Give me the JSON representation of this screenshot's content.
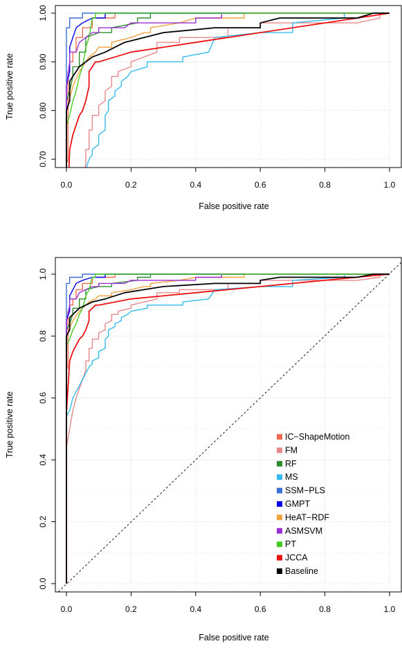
{
  "colors": {
    "IC-ShapeMotion": "#f26c4f",
    "FM": "#e8888a",
    "RF": "#2e8b2e",
    "MS": "#33bbee",
    "SSM-PLS": "#3a6fd8",
    "GMPT": "#0000ee",
    "HeAT-RDF": "#f2a23c",
    "ASMSVM": "#9a2fd4",
    "PT": "#44cc22",
    "JCCA": "#ee1111",
    "Baseline": "#000000"
  },
  "chart_data": [
    {
      "type": "line",
      "title": "",
      "xlabel": "False positive rate",
      "ylabel": "True positive rate",
      "xlim": [
        0,
        1
      ],
      "ylim": [
        0.69,
        1.0
      ],
      "xticks": [
        "0.0",
        "0.2",
        "0.4",
        "0.6",
        "0.8",
        "1.0"
      ],
      "yticks": [
        "0.70",
        "0.80",
        "0.90",
        "1.00"
      ],
      "grid": true,
      "legend": "none",
      "series_ref": "shared"
    },
    {
      "type": "line",
      "title": "",
      "xlabel": "False positive rate",
      "ylabel": "True positive rate",
      "xlim": [
        0,
        1
      ],
      "ylim": [
        0,
        1
      ],
      "xticks": [
        "0.0",
        "0.2",
        "0.4",
        "0.6",
        "0.8",
        "1.0"
      ],
      "yticks": [
        "0.0",
        "0.2",
        "0.4",
        "0.6",
        "0.8",
        "1.0"
      ],
      "grid": true,
      "diagonal": true,
      "legend": "bottom-right",
      "legend_entries": [
        "IC−ShapeMotion",
        "FM",
        "RF",
        "MS",
        "SSM−PLS",
        "GMPT",
        "HeAT−RDF",
        "ASMSVM",
        "PT",
        "JCCA",
        "Baseline"
      ],
      "series_ref": "shared"
    }
  ],
  "series": [
    {
      "key": "IC-ShapeMotion",
      "points": [
        [
          0,
          0
        ],
        [
          0,
          0.69
        ],
        [
          0.005,
          0.7
        ],
        [
          0.005,
          0.88
        ],
        [
          0.01,
          0.88
        ],
        [
          0.01,
          0.9
        ],
        [
          0.02,
          0.9
        ],
        [
          0.02,
          0.92
        ],
        [
          0.03,
          0.92
        ],
        [
          0.03,
          0.95
        ],
        [
          0.05,
          0.95
        ],
        [
          0.05,
          0.97
        ],
        [
          0.08,
          0.97
        ],
        [
          0.08,
          0.99
        ],
        [
          0.15,
          0.99
        ],
        [
          0.15,
          1.0
        ],
        [
          1,
          1
        ]
      ]
    },
    {
      "key": "FM",
      "points": [
        [
          0,
          0
        ],
        [
          0.0,
          0.44
        ],
        [
          0.01,
          0.5
        ],
        [
          0.02,
          0.56
        ],
        [
          0.03,
          0.6
        ],
        [
          0.04,
          0.63
        ],
        [
          0.05,
          0.66
        ],
        [
          0.06,
          0.69
        ],
        [
          0.06,
          0.72
        ],
        [
          0.07,
          0.72
        ],
        [
          0.07,
          0.76
        ],
        [
          0.08,
          0.76
        ],
        [
          0.08,
          0.79
        ],
        [
          0.1,
          0.79
        ],
        [
          0.1,
          0.81
        ],
        [
          0.12,
          0.82
        ],
        [
          0.12,
          0.84
        ],
        [
          0.14,
          0.85
        ],
        [
          0.14,
          0.87
        ],
        [
          0.16,
          0.87
        ],
        [
          0.16,
          0.88
        ],
        [
          0.2,
          0.89
        ],
        [
          0.2,
          0.9
        ],
        [
          0.24,
          0.91
        ],
        [
          0.28,
          0.92
        ],
        [
          0.28,
          0.94
        ],
        [
          0.35,
          0.94
        ],
        [
          0.35,
          0.95
        ],
        [
          0.5,
          0.95
        ],
        [
          0.5,
          0.97
        ],
        [
          0.6,
          0.97
        ],
        [
          0.6,
          0.98
        ],
        [
          0.9,
          0.98
        ],
        [
          0.97,
          0.99
        ],
        [
          0.97,
          1.0
        ],
        [
          1,
          1
        ]
      ]
    },
    {
      "key": "RF",
      "points": [
        [
          0,
          0
        ],
        [
          0,
          0.82
        ],
        [
          0.01,
          0.84
        ],
        [
          0.02,
          0.87
        ],
        [
          0.02,
          0.89
        ],
        [
          0.04,
          0.89
        ],
        [
          0.04,
          0.92
        ],
        [
          0.06,
          0.92
        ],
        [
          0.06,
          0.95
        ],
        [
          0.1,
          0.96
        ],
        [
          0.14,
          0.96
        ],
        [
          0.14,
          0.97
        ],
        [
          0.22,
          0.98
        ],
        [
          0.22,
          0.99
        ],
        [
          0.26,
          0.99
        ],
        [
          0.26,
          1.0
        ],
        [
          1,
          1
        ]
      ]
    },
    {
      "key": "MS",
      "points": [
        [
          0,
          0
        ],
        [
          0,
          0.54
        ],
        [
          0.01,
          0.56
        ],
        [
          0.02,
          0.6
        ],
        [
          0.03,
          0.62
        ],
        [
          0.04,
          0.64
        ],
        [
          0.05,
          0.66
        ],
        [
          0.06,
          0.68
        ],
        [
          0.07,
          0.7
        ],
        [
          0.08,
          0.71
        ],
        [
          0.08,
          0.72
        ],
        [
          0.1,
          0.73
        ],
        [
          0.1,
          0.75
        ],
        [
          0.12,
          0.76
        ],
        [
          0.12,
          0.79
        ],
        [
          0.13,
          0.8
        ],
        [
          0.13,
          0.82
        ],
        [
          0.15,
          0.83
        ],
        [
          0.15,
          0.84
        ],
        [
          0.17,
          0.85
        ],
        [
          0.17,
          0.86
        ],
        [
          0.19,
          0.87
        ],
        [
          0.2,
          0.88
        ],
        [
          0.25,
          0.89
        ],
        [
          0.25,
          0.9
        ],
        [
          0.36,
          0.9
        ],
        [
          0.36,
          0.91
        ],
        [
          0.44,
          0.92
        ],
        [
          0.46,
          0.95
        ],
        [
          0.6,
          0.96
        ],
        [
          0.7,
          0.96
        ],
        [
          0.7,
          0.98
        ],
        [
          0.86,
          0.99
        ],
        [
          0.86,
          1.0
        ],
        [
          1,
          1
        ]
      ]
    },
    {
      "key": "SSM-PLS",
      "points": [
        [
          0,
          0
        ],
        [
          0,
          0.97
        ],
        [
          0.01,
          0.97
        ],
        [
          0.01,
          0.99
        ],
        [
          0.05,
          0.99
        ],
        [
          0.05,
          1.0
        ],
        [
          1,
          1
        ]
      ]
    },
    {
      "key": "GMPT",
      "points": [
        [
          0,
          0
        ],
        [
          0,
          0.85
        ],
        [
          0.01,
          0.88
        ],
        [
          0.01,
          0.93
        ],
        [
          0.02,
          0.95
        ],
        [
          0.03,
          0.97
        ],
        [
          0.05,
          0.98
        ],
        [
          0.08,
          0.99
        ],
        [
          0.12,
          0.99
        ],
        [
          0.12,
          1.0
        ],
        [
          1,
          1
        ]
      ]
    },
    {
      "key": "HeAT-RDF",
      "points": [
        [
          0,
          0
        ],
        [
          0,
          0.8
        ],
        [
          0.02,
          0.85
        ],
        [
          0.04,
          0.88
        ],
        [
          0.05,
          0.89
        ],
        [
          0.06,
          0.9
        ],
        [
          0.07,
          0.91
        ],
        [
          0.09,
          0.92
        ],
        [
          0.1,
          0.93
        ],
        [
          0.14,
          0.93
        ],
        [
          0.14,
          0.94
        ],
        [
          0.2,
          0.95
        ],
        [
          0.24,
          0.96
        ],
        [
          0.26,
          0.96
        ],
        [
          0.26,
          0.97
        ],
        [
          0.35,
          0.98
        ],
        [
          0.4,
          0.99
        ],
        [
          0.55,
          0.99
        ],
        [
          0.55,
          1.0
        ],
        [
          1,
          1
        ]
      ]
    },
    {
      "key": "ASMSVM",
      "points": [
        [
          0,
          0
        ],
        [
          0,
          0.85
        ],
        [
          0.01,
          0.9
        ],
        [
          0.01,
          0.92
        ],
        [
          0.03,
          0.92
        ],
        [
          0.04,
          0.94
        ],
        [
          0.06,
          0.95
        ],
        [
          0.08,
          0.96
        ],
        [
          0.1,
          0.96
        ],
        [
          0.1,
          0.97
        ],
        [
          0.18,
          0.97
        ],
        [
          0.2,
          0.98
        ],
        [
          0.4,
          0.98
        ],
        [
          0.4,
          0.99
        ],
        [
          0.44,
          0.99
        ],
        [
          0.48,
          0.99
        ],
        [
          0.48,
          1.0
        ],
        [
          1,
          1
        ]
      ]
    },
    {
      "key": "PT",
      "points": [
        [
          0,
          0
        ],
        [
          0,
          0.77
        ],
        [
          0.01,
          0.79
        ],
        [
          0.02,
          0.82
        ],
        [
          0.03,
          0.84
        ],
        [
          0.04,
          0.87
        ],
        [
          0.05,
          0.89
        ],
        [
          0.06,
          0.93
        ],
        [
          0.07,
          0.95
        ],
        [
          0.08,
          0.99
        ],
        [
          0.09,
          0.99
        ],
        [
          0.09,
          1.0
        ],
        [
          1,
          1
        ]
      ]
    },
    {
      "key": "JCCA",
      "points": [
        [
          0,
          0
        ],
        [
          0,
          0.55
        ],
        [
          0.01,
          0.72
        ],
        [
          0.02,
          0.75
        ],
        [
          0.03,
          0.77
        ],
        [
          0.04,
          0.79
        ],
        [
          0.05,
          0.8
        ],
        [
          0.06,
          0.82
        ],
        [
          0.07,
          0.85
        ],
        [
          0.07,
          0.88
        ],
        [
          0.08,
          0.89
        ],
        [
          0.09,
          0.9
        ],
        [
          0.1,
          0.9
        ],
        [
          0.2,
          0.92
        ],
        [
          0.4,
          0.94
        ],
        [
          0.6,
          0.96
        ],
        [
          0.8,
          0.98
        ],
        [
          1.0,
          1.0
        ]
      ]
    },
    {
      "key": "Baseline",
      "points": [
        [
          0,
          0
        ],
        [
          0,
          0.8
        ],
        [
          0.01,
          0.82
        ],
        [
          0.01,
          0.86
        ],
        [
          0.02,
          0.87
        ],
        [
          0.04,
          0.89
        ],
        [
          0.06,
          0.9
        ],
        [
          0.08,
          0.91
        ],
        [
          0.12,
          0.92
        ],
        [
          0.15,
          0.93
        ],
        [
          0.18,
          0.94
        ],
        [
          0.24,
          0.95
        ],
        [
          0.3,
          0.96
        ],
        [
          0.46,
          0.97
        ],
        [
          0.6,
          0.97
        ],
        [
          0.6,
          0.98
        ],
        [
          0.66,
          0.99
        ],
        [
          0.9,
          0.99
        ],
        [
          0.95,
          1.0
        ],
        [
          1,
          1
        ]
      ]
    }
  ]
}
